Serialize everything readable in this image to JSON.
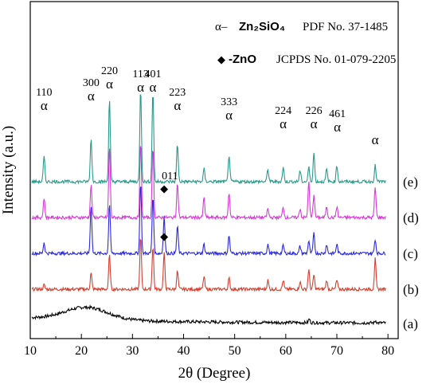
{
  "chart_data": {
    "type": "line",
    "title": "",
    "xlabel": "2θ (Degree)",
    "ylabel": "Intensity (a.u.)",
    "xlim": [
      10,
      82
    ],
    "xticks": [
      10,
      20,
      30,
      40,
      50,
      60,
      70,
      80
    ],
    "grid": false,
    "legend": {
      "placement": "top-right",
      "entries": [
        {
          "symbol": "α–",
          "formula": "Zn₂SiO₄",
          "reference": "PDF No. 37-1485"
        },
        {
          "symbol": "◆",
          "formula": "-ZnO",
          "reference": "JCPDS No. 01-079-2205"
        }
      ]
    },
    "alpha_peaks": [
      {
        "two_theta": 12.7,
        "hkl": "110"
      },
      {
        "two_theta": 21.9,
        "hkl": "300"
      },
      {
        "two_theta": 25.5,
        "hkl": "220"
      },
      {
        "two_theta": 31.6,
        "hkl": "113"
      },
      {
        "two_theta": 34.0,
        "hkl": "401"
      },
      {
        "two_theta": 38.8,
        "hkl": "223"
      },
      {
        "two_theta": 48.9,
        "hkl": "333"
      },
      {
        "two_theta": 59.5,
        "hkl": "224"
      },
      {
        "two_theta": 65.5,
        "hkl": "226"
      },
      {
        "two_theta": 70.1,
        "hkl": "461"
      },
      {
        "two_theta": 77.5,
        "hkl": ""
      }
    ],
    "zno_peaks": [
      {
        "two_theta": 36.2,
        "hkl": "011",
        "series": "(c)"
      },
      {
        "two_theta": 36.2,
        "hkl": "",
        "series": "(b)"
      }
    ],
    "series": [
      {
        "name": "(a)",
        "color": "#000000",
        "baseline": 0.05,
        "amorphous_hump": {
          "center": 21,
          "width": 6,
          "height": 0.35
        },
        "peaks": [
          {
            "x": 64.6,
            "h": 0.1
          },
          {
            "x": 77.6,
            "h": 0.06
          }
        ]
      },
      {
        "name": "(b)",
        "color": "#d2412f",
        "baseline": 1.0,
        "peaks": [
          {
            "x": 12.7,
            "h": 0.12
          },
          {
            "x": 21.9,
            "h": 0.45
          },
          {
            "x": 25.5,
            "h": 0.95
          },
          {
            "x": 31.6,
            "h": 1.45
          },
          {
            "x": 34.0,
            "h": 1.2
          },
          {
            "x": 36.2,
            "h": 1.0
          },
          {
            "x": 38.8,
            "h": 0.5
          },
          {
            "x": 44.0,
            "h": 0.35
          },
          {
            "x": 48.9,
            "h": 0.3
          },
          {
            "x": 56.5,
            "h": 0.25
          },
          {
            "x": 59.5,
            "h": 0.25
          },
          {
            "x": 62.8,
            "h": 0.2
          },
          {
            "x": 64.5,
            "h": 0.55
          },
          {
            "x": 65.5,
            "h": 0.4
          },
          {
            "x": 68.0,
            "h": 0.25
          },
          {
            "x": 70.0,
            "h": 0.25
          },
          {
            "x": 77.5,
            "h": 0.85
          }
        ]
      },
      {
        "name": "(c)",
        "color": "#2b2bd9",
        "baseline": 2.0,
        "peaks": [
          {
            "x": 12.7,
            "h": 0.3
          },
          {
            "x": 21.9,
            "h": 1.35
          },
          {
            "x": 25.5,
            "h": 1.4
          },
          {
            "x": 31.6,
            "h": 2.0
          },
          {
            "x": 34.0,
            "h": 1.6
          },
          {
            "x": 36.2,
            "h": 1.05
          },
          {
            "x": 38.8,
            "h": 0.75
          },
          {
            "x": 44.0,
            "h": 0.25
          },
          {
            "x": 48.9,
            "h": 0.5
          },
          {
            "x": 56.5,
            "h": 0.25
          },
          {
            "x": 59.5,
            "h": 0.22
          },
          {
            "x": 62.8,
            "h": 0.2
          },
          {
            "x": 64.5,
            "h": 0.35
          },
          {
            "x": 65.5,
            "h": 0.55
          },
          {
            "x": 68.0,
            "h": 0.25
          },
          {
            "x": 70.0,
            "h": 0.25
          },
          {
            "x": 77.5,
            "h": 0.4
          }
        ]
      },
      {
        "name": "(d)",
        "color": "#d83ad8",
        "baseline": 3.0,
        "peaks": [
          {
            "x": 12.7,
            "h": 0.55
          },
          {
            "x": 21.9,
            "h": 0.9
          },
          {
            "x": 25.5,
            "h": 2.0
          },
          {
            "x": 31.6,
            "h": 2.1
          },
          {
            "x": 34.0,
            "h": 2.0
          },
          {
            "x": 38.8,
            "h": 0.95
          },
          {
            "x": 44.0,
            "h": 0.55
          },
          {
            "x": 48.9,
            "h": 0.7
          },
          {
            "x": 56.5,
            "h": 0.25
          },
          {
            "x": 59.5,
            "h": 0.3
          },
          {
            "x": 62.8,
            "h": 0.25
          },
          {
            "x": 64.5,
            "h": 1.0
          },
          {
            "x": 65.5,
            "h": 0.65
          },
          {
            "x": 68.0,
            "h": 0.3
          },
          {
            "x": 70.0,
            "h": 0.3
          },
          {
            "x": 77.5,
            "h": 0.85
          }
        ]
      },
      {
        "name": "(e)",
        "color": "#2a9a8a",
        "baseline": 4.0,
        "peaks": [
          {
            "x": 12.7,
            "h": 0.7
          },
          {
            "x": 21.9,
            "h": 1.2
          },
          {
            "x": 25.5,
            "h": 2.3
          },
          {
            "x": 31.6,
            "h": 2.6
          },
          {
            "x": 34.0,
            "h": 2.55
          },
          {
            "x": 38.8,
            "h": 1.05
          },
          {
            "x": 44.0,
            "h": 0.35
          },
          {
            "x": 48.9,
            "h": 0.75
          },
          {
            "x": 56.5,
            "h": 0.35
          },
          {
            "x": 59.5,
            "h": 0.4
          },
          {
            "x": 62.8,
            "h": 0.3
          },
          {
            "x": 64.5,
            "h": 0.4
          },
          {
            "x": 65.5,
            "h": 0.8
          },
          {
            "x": 68.0,
            "h": 0.35
          },
          {
            "x": 70.0,
            "h": 0.45
          },
          {
            "x": 77.5,
            "h": 0.45
          }
        ]
      }
    ]
  }
}
